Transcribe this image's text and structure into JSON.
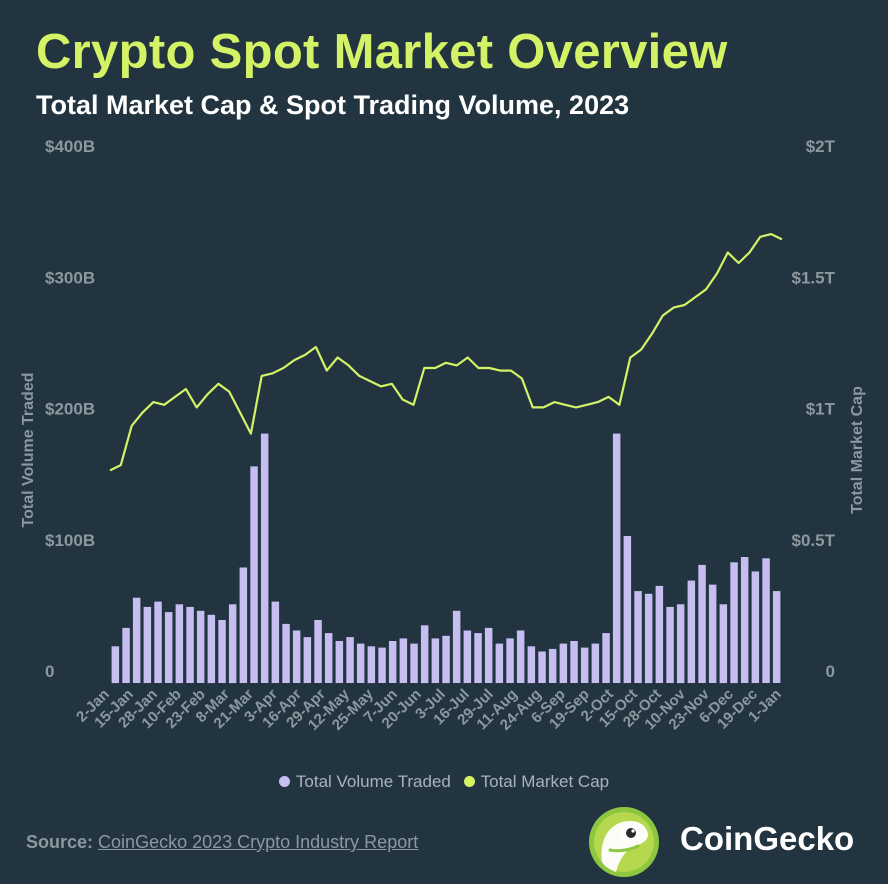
{
  "header": {
    "title": "Crypto Spot Market Overview",
    "subtitle": "Total Market Cap & Spot Trading Volume, 2023"
  },
  "colors": {
    "background": "#213440",
    "title": "#d4f266",
    "volume": "#c6bdf0",
    "market_cap": "#d4f266"
  },
  "chart_data": {
    "type": "bar+line",
    "left_axis": {
      "label": "Total Volume Traded",
      "ticks": [
        "0",
        "$100B",
        "$200B",
        "$300B",
        "$400B"
      ],
      "range": [
        0,
        400
      ]
    },
    "right_axis": {
      "label": "Total Market Cap",
      "ticks": [
        "0",
        "$0.5T",
        "$1T",
        "$1.5T",
        "$2T"
      ],
      "range": [
        0,
        2
      ]
    },
    "x_ticks": [
      "2-Jan",
      "15-Jan",
      "28-Jan",
      "10-Feb",
      "23-Feb",
      "8-Mar",
      "21-Mar",
      "3-Apr",
      "16-Apr",
      "29-Apr",
      "12-May",
      "25-May",
      "7-Jun",
      "20-Jun",
      "3-Jul",
      "16-Jul",
      "29-Jul",
      "11-Aug",
      "24-Aug",
      "6-Sep",
      "19-Sep",
      "2-Oct",
      "15-Oct",
      "28-Oct",
      "10-Nov",
      "23-Nov",
      "6-Dec",
      "19-Dec",
      "1-Jan"
    ],
    "series": [
      {
        "name": "Total Volume Traded",
        "unit": "billion USD",
        "axis": "left",
        "type": "bar",
        "weekly_values": [
          28,
          42,
          65,
          58,
          62,
          54,
          60,
          58,
          55,
          52,
          48,
          60,
          88,
          165,
          190,
          62,
          45,
          40,
          35,
          48,
          38,
          32,
          35,
          30,
          28,
          27,
          32,
          34,
          30,
          44,
          34,
          36,
          55,
          40,
          38,
          42,
          30,
          34,
          40,
          28,
          24,
          26,
          30,
          32,
          27,
          30,
          38,
          190,
          112,
          70,
          68,
          74,
          58,
          60,
          78,
          90,
          75,
          60,
          92,
          96,
          85,
          95,
          70
        ]
      },
      {
        "name": "Total Market Cap",
        "unit": "trillion USD",
        "axis": "right",
        "type": "line",
        "weekly_values": [
          0.81,
          0.83,
          0.98,
          1.03,
          1.07,
          1.06,
          1.09,
          1.12,
          1.05,
          1.1,
          1.14,
          1.11,
          1.03,
          0.95,
          1.17,
          1.18,
          1.2,
          1.23,
          1.25,
          1.28,
          1.19,
          1.24,
          1.21,
          1.17,
          1.15,
          1.13,
          1.14,
          1.08,
          1.06,
          1.2,
          1.2,
          1.22,
          1.21,
          1.24,
          1.2,
          1.2,
          1.19,
          1.19,
          1.16,
          1.05,
          1.05,
          1.07,
          1.06,
          1.05,
          1.06,
          1.07,
          1.09,
          1.06,
          1.24,
          1.27,
          1.33,
          1.4,
          1.43,
          1.44,
          1.47,
          1.5,
          1.56,
          1.64,
          1.6,
          1.64,
          1.7,
          1.71,
          1.69
        ]
      }
    ],
    "legend": [
      "Total Volume Traded",
      "Total Market Cap"
    ],
    "legend_position": "bottom"
  },
  "footer": {
    "source_label": "Source:",
    "source_text": "CoinGecko 2023 Crypto Industry Report",
    "brand": "CoinGecko"
  }
}
